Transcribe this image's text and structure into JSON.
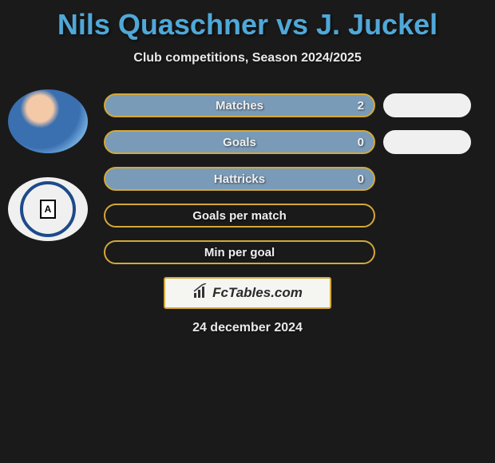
{
  "title": "Nils Quaschner vs J. Juckel",
  "subtitle": "Club competitions, Season 2024/2025",
  "stats": [
    {
      "label": "Matches",
      "value_left": "2",
      "filled": true,
      "show_right": true
    },
    {
      "label": "Goals",
      "value_left": "0",
      "filled": true,
      "show_right": true
    },
    {
      "label": "Hattricks",
      "value_left": "0",
      "filled": true,
      "show_right": false
    },
    {
      "label": "Goals per match",
      "value_left": "",
      "filled": false,
      "show_right": false
    },
    {
      "label": "Min per goal",
      "value_left": "",
      "filled": false,
      "show_right": false
    }
  ],
  "logo_text": "FcTables.com",
  "date": "24 december 2024",
  "colors": {
    "title_color": "#4fa8d8",
    "text_color": "#e8e8e8",
    "bar_border": "#d4a838",
    "bar_fill": "#7a9bb8",
    "bar_right_fill": "#f0f0f0",
    "background": "#1a1a1a"
  },
  "club_letter": "A"
}
